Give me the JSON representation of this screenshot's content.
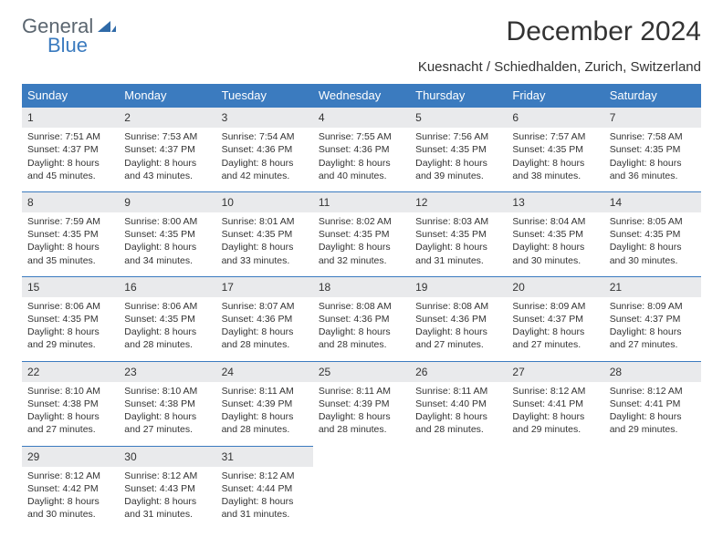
{
  "brand": {
    "line1": "General",
    "line2": "Blue"
  },
  "title": "December 2024",
  "subtitle": "Kuesnacht / Schiedhalden, Zurich, Switzerland",
  "colors": {
    "header_bg": "#3b7bbf",
    "header_text": "#ffffff",
    "daynum_bg": "#e9eaec",
    "border": "#3b7bbf",
    "page_bg": "#ffffff",
    "text": "#333333",
    "logo_gray": "#5b6670",
    "logo_blue": "#3b7bbf"
  },
  "typography": {
    "title_fontsize": 30,
    "subtitle_fontsize": 15,
    "th_fontsize": 13,
    "cell_fontsize": 10.5,
    "daynum_fontsize": 12
  },
  "weekdays": [
    "Sunday",
    "Monday",
    "Tuesday",
    "Wednesday",
    "Thursday",
    "Friday",
    "Saturday"
  ],
  "weeks": [
    [
      {
        "n": "1",
        "sr": "7:51 AM",
        "ss": "4:37 PM",
        "dl": "8 hours and 45 minutes."
      },
      {
        "n": "2",
        "sr": "7:53 AM",
        "ss": "4:37 PM",
        "dl": "8 hours and 43 minutes."
      },
      {
        "n": "3",
        "sr": "7:54 AM",
        "ss": "4:36 PM",
        "dl": "8 hours and 42 minutes."
      },
      {
        "n": "4",
        "sr": "7:55 AM",
        "ss": "4:36 PM",
        "dl": "8 hours and 40 minutes."
      },
      {
        "n": "5",
        "sr": "7:56 AM",
        "ss": "4:35 PM",
        "dl": "8 hours and 39 minutes."
      },
      {
        "n": "6",
        "sr": "7:57 AM",
        "ss": "4:35 PM",
        "dl": "8 hours and 38 minutes."
      },
      {
        "n": "7",
        "sr": "7:58 AM",
        "ss": "4:35 PM",
        "dl": "8 hours and 36 minutes."
      }
    ],
    [
      {
        "n": "8",
        "sr": "7:59 AM",
        "ss": "4:35 PM",
        "dl": "8 hours and 35 minutes."
      },
      {
        "n": "9",
        "sr": "8:00 AM",
        "ss": "4:35 PM",
        "dl": "8 hours and 34 minutes."
      },
      {
        "n": "10",
        "sr": "8:01 AM",
        "ss": "4:35 PM",
        "dl": "8 hours and 33 minutes."
      },
      {
        "n": "11",
        "sr": "8:02 AM",
        "ss": "4:35 PM",
        "dl": "8 hours and 32 minutes."
      },
      {
        "n": "12",
        "sr": "8:03 AM",
        "ss": "4:35 PM",
        "dl": "8 hours and 31 minutes."
      },
      {
        "n": "13",
        "sr": "8:04 AM",
        "ss": "4:35 PM",
        "dl": "8 hours and 30 minutes."
      },
      {
        "n": "14",
        "sr": "8:05 AM",
        "ss": "4:35 PM",
        "dl": "8 hours and 30 minutes."
      }
    ],
    [
      {
        "n": "15",
        "sr": "8:06 AM",
        "ss": "4:35 PM",
        "dl": "8 hours and 29 minutes."
      },
      {
        "n": "16",
        "sr": "8:06 AM",
        "ss": "4:35 PM",
        "dl": "8 hours and 28 minutes."
      },
      {
        "n": "17",
        "sr": "8:07 AM",
        "ss": "4:36 PM",
        "dl": "8 hours and 28 minutes."
      },
      {
        "n": "18",
        "sr": "8:08 AM",
        "ss": "4:36 PM",
        "dl": "8 hours and 28 minutes."
      },
      {
        "n": "19",
        "sr": "8:08 AM",
        "ss": "4:36 PM",
        "dl": "8 hours and 27 minutes."
      },
      {
        "n": "20",
        "sr": "8:09 AM",
        "ss": "4:37 PM",
        "dl": "8 hours and 27 minutes."
      },
      {
        "n": "21",
        "sr": "8:09 AM",
        "ss": "4:37 PM",
        "dl": "8 hours and 27 minutes."
      }
    ],
    [
      {
        "n": "22",
        "sr": "8:10 AM",
        "ss": "4:38 PM",
        "dl": "8 hours and 27 minutes."
      },
      {
        "n": "23",
        "sr": "8:10 AM",
        "ss": "4:38 PM",
        "dl": "8 hours and 27 minutes."
      },
      {
        "n": "24",
        "sr": "8:11 AM",
        "ss": "4:39 PM",
        "dl": "8 hours and 28 minutes."
      },
      {
        "n": "25",
        "sr": "8:11 AM",
        "ss": "4:39 PM",
        "dl": "8 hours and 28 minutes."
      },
      {
        "n": "26",
        "sr": "8:11 AM",
        "ss": "4:40 PM",
        "dl": "8 hours and 28 minutes."
      },
      {
        "n": "27",
        "sr": "8:12 AM",
        "ss": "4:41 PM",
        "dl": "8 hours and 29 minutes."
      },
      {
        "n": "28",
        "sr": "8:12 AM",
        "ss": "4:41 PM",
        "dl": "8 hours and 29 minutes."
      }
    ],
    [
      {
        "n": "29",
        "sr": "8:12 AM",
        "ss": "4:42 PM",
        "dl": "8 hours and 30 minutes."
      },
      {
        "n": "30",
        "sr": "8:12 AM",
        "ss": "4:43 PM",
        "dl": "8 hours and 31 minutes."
      },
      {
        "n": "31",
        "sr": "8:12 AM",
        "ss": "4:44 PM",
        "dl": "8 hours and 31 minutes."
      },
      null,
      null,
      null,
      null
    ]
  ],
  "labels": {
    "sunrise": "Sunrise:",
    "sunset": "Sunset:",
    "daylight": "Daylight:"
  }
}
